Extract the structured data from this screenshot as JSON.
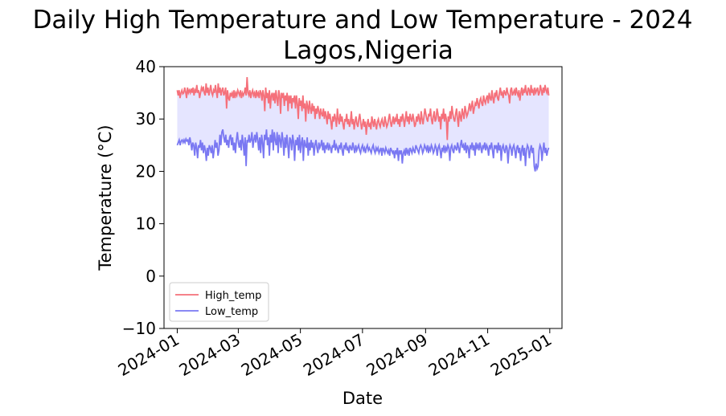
{
  "chart_data": {
    "type": "line",
    "title_line1": "Daily High Temperature and Low Temperature - 2024",
    "title_line2": "Lagos,Nigeria",
    "xlabel": "Date",
    "ylabel": "Temperature (°C)",
    "xlim": [
      "2023-12-19",
      "2025-01-13"
    ],
    "ylim": [
      -10,
      40
    ],
    "y_ticks": [
      -10,
      0,
      10,
      20,
      30,
      40
    ],
    "y_tick_labels": [
      "−10",
      "0",
      "10",
      "20",
      "30",
      "40"
    ],
    "x_ticks": [
      "2024-01-01",
      "2024-03-01",
      "2024-05-01",
      "2024-07-01",
      "2024-09-01",
      "2024-11-01",
      "2025-01-01"
    ],
    "x_tick_labels": [
      "2024-01",
      "2024-03",
      "2024-05",
      "2024-07",
      "2024-09",
      "2024-11",
      "2025-01"
    ],
    "grid": false,
    "legend_position": "lower-left",
    "fill_between": {
      "color": "#e5e5ff"
    },
    "series": [
      {
        "name": "High_temp",
        "color": "#f5707a",
        "x_start": "2024-01-01",
        "x_end": "2024-12-31",
        "values": [
          35.5,
          34.5,
          35.5,
          34.0,
          35.0,
          35.5,
          34.8,
          35.0,
          36.0,
          35.2,
          34.0,
          36.0,
          35.0,
          35.5,
          35.0,
          35.8,
          35.0,
          36.0,
          34.5,
          35.5,
          35.0,
          36.5,
          35.0,
          35.5,
          34.0,
          35.0,
          36.0,
          35.5,
          36.2,
          35.0,
          34.5,
          36.8,
          35.0,
          36.0,
          34.5,
          35.5,
          36.5,
          35.0,
          34.5,
          35.5,
          35.0,
          36.5,
          35.2,
          34.0,
          36.8,
          35.0,
          36.0,
          34.5,
          35.5,
          36.0,
          34.5,
          35.0,
          36.0,
          32.0,
          35.5,
          34.0,
          33.5,
          35.0,
          34.5,
          35.0,
          34.0,
          35.5,
          34.0,
          35.0,
          34.5,
          35.5,
          35.0,
          34.5,
          35.5,
          34.0,
          35.0,
          34.5,
          35.0,
          36.0,
          34.5,
          38.0,
          35.0,
          34.5,
          35.5,
          34.0,
          35.0,
          35.5,
          34.5,
          35.0,
          34.0,
          35.5,
          34.5,
          35.0,
          34.0,
          35.5,
          35.0,
          33.5,
          35.5,
          34.5,
          31.5,
          36.0,
          34.0,
          35.0,
          33.0,
          35.5,
          32.0,
          34.5,
          35.0,
          33.5,
          35.0,
          33.0,
          35.5,
          34.0,
          32.5,
          35.5,
          34.5,
          31.0,
          35.0,
          34.0,
          35.0,
          32.5,
          34.5,
          33.5,
          35.0,
          31.5,
          34.5,
          33.0,
          34.5,
          32.0,
          34.0,
          33.5,
          34.5,
          32.0,
          34.5,
          33.0,
          30.0,
          34.0,
          32.5,
          33.5,
          31.5,
          34.5,
          32.0,
          33.0,
          29.5,
          33.5,
          32.5,
          31.0,
          33.5,
          32.0,
          31.0,
          33.0,
          31.5,
          32.5,
          30.0,
          32.0,
          31.0,
          32.5,
          31.5,
          30.0,
          32.0,
          31.0,
          30.5,
          32.0,
          30.0,
          31.5,
          30.5,
          29.0,
          31.5,
          30.0,
          31.0,
          29.5,
          28.0,
          30.5,
          29.5,
          31.0,
          30.0,
          28.5,
          32.0,
          30.0,
          29.0,
          31.0,
          29.5,
          30.5,
          29.0,
          28.0,
          30.0,
          29.5,
          31.0,
          29.0,
          30.0,
          28.5,
          29.5,
          31.5,
          29.0,
          30.0,
          28.0,
          29.5,
          30.5,
          29.0,
          28.5,
          30.0,
          31.0,
          29.5,
          28.0,
          29.0,
          30.0,
          28.5,
          29.5,
          27.0,
          29.0,
          30.0,
          28.5,
          29.0,
          28.0,
          30.5,
          29.5,
          28.5,
          30.0,
          29.0,
          28.0,
          29.5,
          30.0,
          29.0,
          28.5,
          29.5,
          30.0,
          29.0,
          28.5,
          30.5,
          29.5,
          28.5,
          29.0,
          30.0,
          31.0,
          29.5,
          28.5,
          29.5,
          30.5,
          29.0,
          30.0,
          29.5,
          31.0,
          29.0,
          30.0,
          28.5,
          30.5,
          29.5,
          31.0,
          30.0,
          28.5,
          30.0,
          31.5,
          29.5,
          30.5,
          29.0,
          31.0,
          30.0,
          29.5,
          31.0,
          30.0,
          28.5,
          29.0,
          30.5,
          29.5,
          31.0,
          30.0,
          29.0,
          31.5,
          30.0,
          29.0,
          30.5,
          32.0,
          31.0,
          30.0,
          29.5,
          31.0,
          30.5,
          32.0,
          30.0,
          29.0,
          30.5,
          31.5,
          29.5,
          30.0,
          32.0,
          31.0,
          29.5,
          30.5,
          28.0,
          31.0,
          30.0,
          32.0,
          29.5,
          31.0,
          30.0,
          26.0,
          30.5,
          29.5,
          31.5,
          30.0,
          32.5,
          31.0,
          30.0,
          29.5,
          31.0,
          32.0,
          30.0,
          28.5,
          31.5,
          30.5,
          29.5,
          32.0,
          31.0,
          30.0,
          32.5,
          31.5,
          30.5,
          31.0,
          32.0,
          33.0,
          31.5,
          32.5,
          33.5,
          31.0,
          32.0,
          33.0,
          32.5,
          34.0,
          33.0,
          32.0,
          33.5,
          34.0,
          33.0,
          32.5,
          34.5,
          33.5,
          33.0,
          34.0,
          34.5,
          33.0,
          35.0,
          34.0,
          33.5,
          35.5,
          34.0,
          33.0,
          35.0,
          34.5,
          35.5,
          34.0,
          33.5,
          35.0,
          36.0,
          34.5,
          35.0,
          34.0,
          35.5,
          35.0,
          34.5,
          36.0,
          35.0,
          34.5,
          33.0,
          35.5,
          36.0,
          34.5,
          35.0,
          35.5,
          34.5,
          36.0,
          35.0,
          34.5,
          35.5,
          33.5,
          35.0,
          36.0,
          34.5,
          35.5,
          35.0,
          36.5,
          35.0,
          34.5,
          36.0,
          35.5,
          34.5,
          36.5,
          35.0,
          35.5,
          34.5,
          36.0,
          35.0,
          35.5,
          36.0,
          34.5,
          35.0,
          36.5,
          35.5,
          34.5,
          36.0,
          35.0,
          36.5,
          35.5,
          35.0,
          36.0,
          34.5
        ]
      },
      {
        "name": "Low_temp",
        "color": "#7a78f2",
        "x_start": "2024-01-01",
        "x_end": "2024-12-31",
        "values": [
          25.0,
          25.5,
          26.0,
          25.0,
          25.8,
          26.0,
          25.5,
          26.0,
          25.5,
          26.2,
          25.8,
          26.0,
          25.0,
          26.5,
          25.5,
          24.0,
          25.5,
          25.0,
          23.0,
          25.5,
          24.5,
          22.5,
          25.0,
          24.5,
          26.0,
          24.0,
          25.5,
          23.5,
          25.0,
          24.0,
          22.0,
          24.5,
          23.0,
          25.0,
          24.5,
          23.5,
          25.0,
          22.5,
          24.0,
          26.0,
          24.5,
          25.5,
          23.0,
          24.0,
          27.0,
          25.0,
          27.5,
          28.0,
          26.5,
          25.5,
          27.0,
          25.0,
          26.0,
          24.5,
          26.5,
          27.0,
          25.0,
          26.5,
          24.0,
          25.5,
          23.5,
          26.0,
          27.5,
          25.5,
          24.5,
          26.0,
          24.0,
          27.0,
          25.5,
          23.0,
          26.5,
          21.0,
          26.0,
          25.5,
          27.0,
          25.5,
          26.0,
          27.5,
          24.5,
          26.0,
          27.0,
          25.5,
          27.5,
          26.0,
          24.0,
          26.5,
          23.5,
          27.0,
          25.5,
          22.5,
          27.0,
          26.0,
          28.0,
          25.0,
          26.5,
          23.0,
          27.0,
          25.5,
          28.0,
          24.0,
          27.5,
          26.0,
          25.0,
          27.5,
          23.5,
          27.0,
          26.0,
          24.5,
          27.5,
          26.0,
          23.0,
          26.5,
          24.5,
          27.0,
          25.0,
          22.5,
          26.5,
          26.0,
          24.0,
          27.0,
          25.5,
          22.0,
          26.0,
          25.0,
          26.5,
          24.0,
          27.0,
          23.5,
          25.5,
          26.5,
          22.0,
          26.0,
          25.0,
          24.5,
          26.5,
          23.0,
          25.5,
          24.0,
          26.0,
          24.5,
          25.5,
          23.0,
          25.0,
          26.0,
          24.5,
          23.5,
          25.5,
          24.5,
          25.0,
          26.0,
          24.0,
          25.5,
          23.5,
          25.0,
          24.5,
          25.5,
          24.0,
          25.0,
          24.5,
          23.5,
          25.0,
          24.5,
          26.0,
          24.0,
          25.0,
          24.5,
          23.5,
          25.0,
          24.5,
          25.5,
          24.0,
          23.0,
          25.0,
          24.5,
          25.5,
          24.0,
          24.5,
          23.5,
          25.0,
          24.5,
          24.0,
          25.5,
          24.5,
          23.5,
          25.0,
          24.0,
          24.5,
          25.0,
          24.0,
          23.5,
          24.5,
          25.0,
          24.0,
          24.5,
          23.5,
          24.5,
          25.0,
          24.0,
          24.5,
          24.0,
          23.5,
          24.5,
          25.0,
          24.0,
          23.5,
          24.5,
          24.0,
          24.5,
          23.5,
          24.0,
          24.5,
          23.0,
          24.5,
          24.0,
          23.5,
          24.5,
          24.0,
          23.5,
          24.0,
          23.0,
          24.5,
          24.0,
          23.5,
          24.0,
          22.5,
          24.0,
          23.5,
          24.5,
          22.0,
          24.0,
          23.5,
          24.0,
          21.5,
          23.5,
          24.0,
          23.0,
          24.5,
          23.5,
          24.0,
          23.0,
          24.5,
          24.0,
          23.5,
          24.5,
          24.0,
          23.5,
          25.0,
          24.5,
          24.0,
          23.5,
          24.5,
          25.0,
          24.5,
          23.5,
          24.0,
          25.0,
          24.5,
          24.0,
          25.0,
          23.5,
          24.5,
          24.0,
          25.0,
          24.5,
          23.5,
          24.0,
          25.0,
          24.5,
          23.0,
          24.5,
          25.0,
          24.0,
          22.5,
          24.5,
          24.0,
          25.0,
          23.5,
          24.5,
          24.0,
          25.0,
          24.5,
          22.0,
          24.5,
          25.0,
          24.0,
          23.5,
          25.0,
          24.5,
          24.0,
          25.5,
          24.5,
          23.5,
          25.0,
          26.0,
          24.5,
          25.0,
          24.0,
          25.5,
          23.5,
          25.0,
          24.5,
          22.5,
          25.0,
          24.5,
          25.5,
          24.0,
          25.0,
          23.0,
          25.5,
          24.5,
          25.0,
          24.0,
          25.5,
          24.5,
          23.5,
          25.0,
          24.5,
          25.5,
          24.0,
          25.0,
          24.5,
          23.0,
          25.0,
          24.5,
          25.5,
          24.0,
          22.5,
          25.0,
          24.5,
          25.0,
          23.5,
          25.5,
          24.0,
          25.0,
          22.0,
          24.5,
          25.0,
          24.0,
          23.5,
          25.0,
          24.5,
          21.5,
          24.0,
          25.0,
          24.5,
          23.0,
          24.5,
          25.0,
          24.0,
          22.5,
          24.5,
          25.0,
          23.5,
          24.5,
          22.0,
          24.0,
          25.0,
          23.0,
          24.5,
          21.0,
          24.0,
          25.0,
          24.5,
          22.5,
          24.0,
          25.0,
          23.5,
          24.5,
          21.0,
          20.0,
          21.5,
          20.5,
          21.0,
          24.0,
          25.0,
          24.5,
          22.0,
          24.0,
          25.5,
          23.5,
          24.5,
          23.0,
          24.0,
          24.5
        ]
      }
    ]
  }
}
